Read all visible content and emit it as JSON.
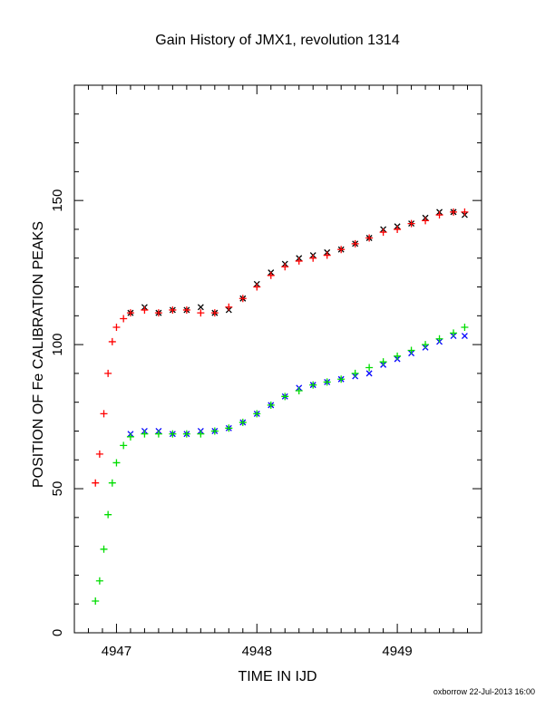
{
  "chart_data": {
    "type": "scatter",
    "title": "Gain History of JMX1, revolution 1314",
    "xlabel": "TIME IN IJD",
    "ylabel": "POSITION OF Fe CALIBRATION PEAKS",
    "xlim": [
      4946.7,
      4949.6
    ],
    "ylim": [
      0,
      190
    ],
    "x_ticks": [
      4947,
      4948,
      4949
    ],
    "y_ticks": [
      0,
      50,
      100,
      150
    ],
    "grid": false,
    "legend": "none",
    "series": [
      {
        "marker": "x",
        "color": "#000000",
        "points": [
          [
            4947.1,
            111
          ],
          [
            4947.2,
            113
          ],
          [
            4947.3,
            111
          ],
          [
            4947.4,
            112
          ],
          [
            4947.5,
            112
          ],
          [
            4947.6,
            113
          ],
          [
            4947.7,
            111
          ],
          [
            4947.8,
            112
          ],
          [
            4947.9,
            116
          ],
          [
            4948.0,
            121
          ],
          [
            4948.1,
            125
          ],
          [
            4948.2,
            128
          ],
          [
            4948.3,
            130
          ],
          [
            4948.4,
            131
          ],
          [
            4948.5,
            132
          ],
          [
            4948.6,
            133
          ],
          [
            4948.7,
            135
          ],
          [
            4948.8,
            137
          ],
          [
            4948.9,
            140
          ],
          [
            4949.0,
            141
          ],
          [
            4949.1,
            142
          ],
          [
            4949.2,
            144
          ],
          [
            4949.3,
            146
          ],
          [
            4949.4,
            146
          ],
          [
            4949.48,
            145
          ]
        ]
      },
      {
        "marker": "+",
        "color": "#ff0000",
        "points": [
          [
            4946.85,
            52
          ],
          [
            4946.88,
            62
          ],
          [
            4946.91,
            76
          ],
          [
            4946.94,
            90
          ],
          [
            4946.97,
            101
          ],
          [
            4947.0,
            106
          ],
          [
            4947.05,
            109
          ],
          [
            4947.1,
            111
          ],
          [
            4947.2,
            112
          ],
          [
            4947.3,
            111
          ],
          [
            4947.4,
            112
          ],
          [
            4947.5,
            112
          ],
          [
            4947.6,
            111
          ],
          [
            4947.7,
            111
          ],
          [
            4947.8,
            113
          ],
          [
            4947.9,
            116
          ],
          [
            4948.0,
            120
          ],
          [
            4948.1,
            124
          ],
          [
            4948.2,
            127
          ],
          [
            4948.3,
            129
          ],
          [
            4948.4,
            130
          ],
          [
            4948.5,
            131
          ],
          [
            4948.6,
            133
          ],
          [
            4948.7,
            135
          ],
          [
            4948.8,
            137
          ],
          [
            4948.9,
            139
          ],
          [
            4949.0,
            140
          ],
          [
            4949.1,
            142
          ],
          [
            4949.2,
            143
          ],
          [
            4949.3,
            145
          ],
          [
            4949.4,
            146
          ],
          [
            4949.48,
            146
          ]
        ]
      },
      {
        "marker": "x",
        "color": "#0000ff",
        "points": [
          [
            4947.1,
            69
          ],
          [
            4947.2,
            70
          ],
          [
            4947.3,
            70
          ],
          [
            4947.4,
            69
          ],
          [
            4947.5,
            69
          ],
          [
            4947.6,
            70
          ],
          [
            4947.7,
            70
          ],
          [
            4947.8,
            71
          ],
          [
            4947.9,
            73
          ],
          [
            4948.0,
            76
          ],
          [
            4948.1,
            79
          ],
          [
            4948.2,
            82
          ],
          [
            4948.3,
            85
          ],
          [
            4948.4,
            86
          ],
          [
            4948.5,
            87
          ],
          [
            4948.6,
            88
          ],
          [
            4948.7,
            89
          ],
          [
            4948.8,
            90
          ],
          [
            4948.9,
            93
          ],
          [
            4949.0,
            95
          ],
          [
            4949.1,
            97
          ],
          [
            4949.2,
            99
          ],
          [
            4949.3,
            101
          ],
          [
            4949.4,
            103
          ],
          [
            4949.48,
            103
          ]
        ]
      },
      {
        "marker": "+",
        "color": "#00dd00",
        "points": [
          [
            4946.85,
            11
          ],
          [
            4946.88,
            18
          ],
          [
            4946.91,
            29
          ],
          [
            4946.94,
            41
          ],
          [
            4946.97,
            52
          ],
          [
            4947.0,
            59
          ],
          [
            4947.05,
            65
          ],
          [
            4947.1,
            68
          ],
          [
            4947.2,
            69
          ],
          [
            4947.3,
            69
          ],
          [
            4947.4,
            69
          ],
          [
            4947.5,
            69
          ],
          [
            4947.6,
            69
          ],
          [
            4947.7,
            70
          ],
          [
            4947.8,
            71
          ],
          [
            4947.9,
            73
          ],
          [
            4948.0,
            76
          ],
          [
            4948.1,
            79
          ],
          [
            4948.2,
            82
          ],
          [
            4948.3,
            84
          ],
          [
            4948.4,
            86
          ],
          [
            4948.5,
            87
          ],
          [
            4948.6,
            88
          ],
          [
            4948.7,
            90
          ],
          [
            4948.8,
            92
          ],
          [
            4948.9,
            94
          ],
          [
            4949.0,
            96
          ],
          [
            4949.1,
            98
          ],
          [
            4949.2,
            100
          ],
          [
            4949.3,
            102
          ],
          [
            4949.4,
            104
          ],
          [
            4949.48,
            106
          ]
        ]
      }
    ]
  },
  "credit": "oxborrow 22-Jul-2013 16:00"
}
